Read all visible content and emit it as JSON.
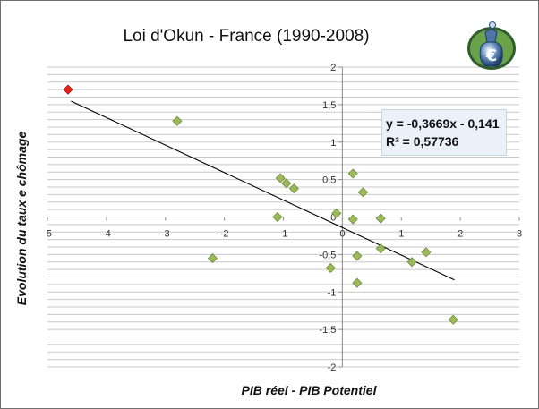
{
  "chart_data": {
    "type": "scatter",
    "title": "Loi d'Okun - France (1990-2008)",
    "xlabel": "PIB réel - PIB Potentiel",
    "ylabel": "Evolution du taux e chômage",
    "xlim": [
      -5,
      3
    ],
    "ylim": [
      -2,
      2
    ],
    "x_ticks": [
      -5,
      -4,
      -3,
      -2,
      -1,
      0,
      1,
      2,
      3
    ],
    "x_tick_labels": [
      "-5",
      "-4",
      "-3",
      "-2",
      "-1",
      "0",
      "1",
      "2",
      "3"
    ],
    "y_ticks": [
      -2,
      -1.5,
      -1,
      -0.5,
      0,
      0.5,
      1,
      1.5,
      2
    ],
    "y_tick_labels": [
      "-2",
      "-1,5",
      "-1",
      "-0,5",
      "0",
      "0,5",
      "1",
      "1,5",
      "2"
    ],
    "grid": "horizontal",
    "minor_y_step": 0.1,
    "series": [
      {
        "color": "#9bbb59",
        "marker": "diamond",
        "points": [
          {
            "x": -2.8,
            "y": 1.28
          },
          {
            "x": -2.2,
            "y": -0.55
          },
          {
            "x": -1.1,
            "y": 0.0
          },
          {
            "x": -1.05,
            "y": 0.52
          },
          {
            "x": -0.95,
            "y": 0.45
          },
          {
            "x": -0.82,
            "y": 0.38
          },
          {
            "x": -0.1,
            "y": 0.05
          },
          {
            "x": -0.2,
            "y": -0.68
          },
          {
            "x": 0.18,
            "y": 0.58
          },
          {
            "x": 0.18,
            "y": -0.03
          },
          {
            "x": 0.25,
            "y": -0.52
          },
          {
            "x": 0.25,
            "y": -0.88
          },
          {
            "x": 0.35,
            "y": 0.33
          },
          {
            "x": 0.65,
            "y": -0.02
          },
          {
            "x": 0.65,
            "y": -0.42
          },
          {
            "x": 1.18,
            "y": -0.6
          },
          {
            "x": 1.42,
            "y": -0.47
          },
          {
            "x": 1.88,
            "y": -1.37
          }
        ]
      },
      {
        "color": "#e8231a",
        "marker": "diamond",
        "points": [
          {
            "x": -4.65,
            "y": 1.7
          }
        ]
      }
    ],
    "trendline": {
      "slope": -0.3669,
      "intercept": -0.141,
      "x_range": [
        -4.6,
        1.9
      ],
      "color": "#000000"
    },
    "annotations": {
      "equation": "y = -0,3669x - 0,141",
      "r_squared": "R² = 0,57736"
    }
  },
  "colors": {
    "grid": "#c8c8c8",
    "axis": "#8c8c8c"
  },
  "logo": {
    "icon": "euro-bag-logo-icon"
  }
}
